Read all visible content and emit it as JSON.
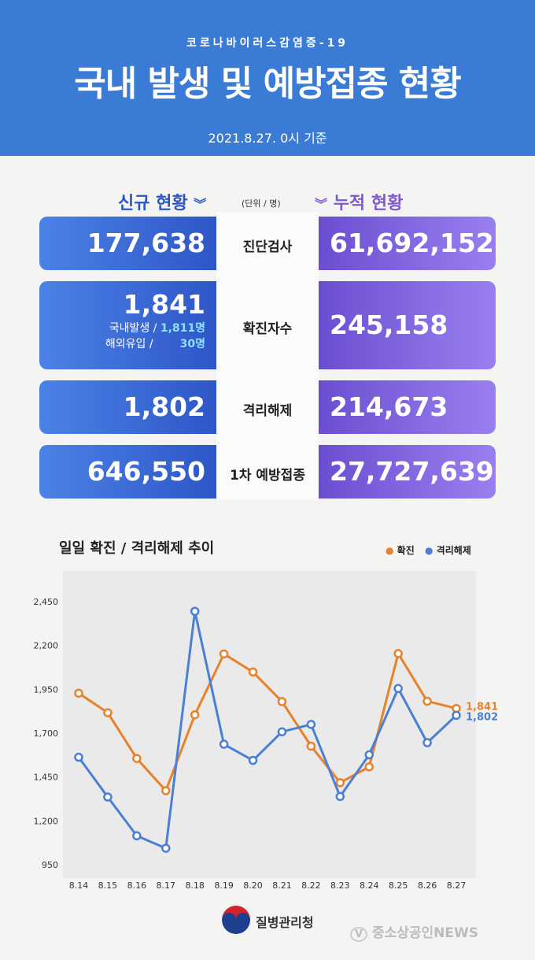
{
  "header": {
    "sub": "코로나바이러스감염증-19",
    "title": "국내 발생 및 예방접종 현황",
    "date": "2021.8.27. 0시 기준"
  },
  "sections": {
    "left": "신규 현황",
    "right": "누적 현황",
    "unit": "(단위 / 명)"
  },
  "rows": [
    {
      "label": "진단검사",
      "new": "177,638",
      "total": "61,692,152"
    },
    {
      "label": "확진자수",
      "new": "1,841",
      "total": "245,158",
      "domestic_label": "국내발생 /",
      "domestic": "1,811명",
      "overseas_label": "해외유입 /",
      "overseas": "30명"
    },
    {
      "label": "격리해제",
      "new": "1,802",
      "total": "214,673"
    },
    {
      "label": "1차 예방접종",
      "new": "646,550",
      "total": "27,727,639"
    }
  ],
  "colors": {
    "confirmed": "#e8822a",
    "released": "#4a7fd4"
  },
  "chart_data": {
    "type": "line",
    "title": "일일 확진 / 격리해제 추이",
    "categories": [
      "8.14",
      "8.15",
      "8.16",
      "8.17",
      "8.18",
      "8.19",
      "8.20",
      "8.21",
      "8.22",
      "8.23",
      "8.24",
      "8.25",
      "8.26",
      "8.27"
    ],
    "yticks": [
      "2,450",
      "2,200",
      "1,950",
      "1,700",
      "1,450",
      "1,200",
      "950"
    ],
    "ylim": [
      950,
      2450
    ],
    "series": [
      {
        "name": "확진",
        "values": [
          1928,
          1817,
          1556,
          1372,
          1805,
          2152,
          2049,
          1880,
          1626,
          1418,
          1508,
          2154,
          1882,
          1841
        ],
        "end_label": "1,841"
      },
      {
        "name": "격리해제",
        "values": [
          1563,
          1336,
          1115,
          1044,
          2395,
          1637,
          1545,
          1708,
          1750,
          1339,
          1577,
          1955,
          1646,
          1802
        ],
        "end_label": "1,802"
      }
    ],
    "grid": false,
    "legend": "top-right"
  },
  "footer": {
    "agency": "질병관리청",
    "watermark": "중소상공인NEWS"
  }
}
